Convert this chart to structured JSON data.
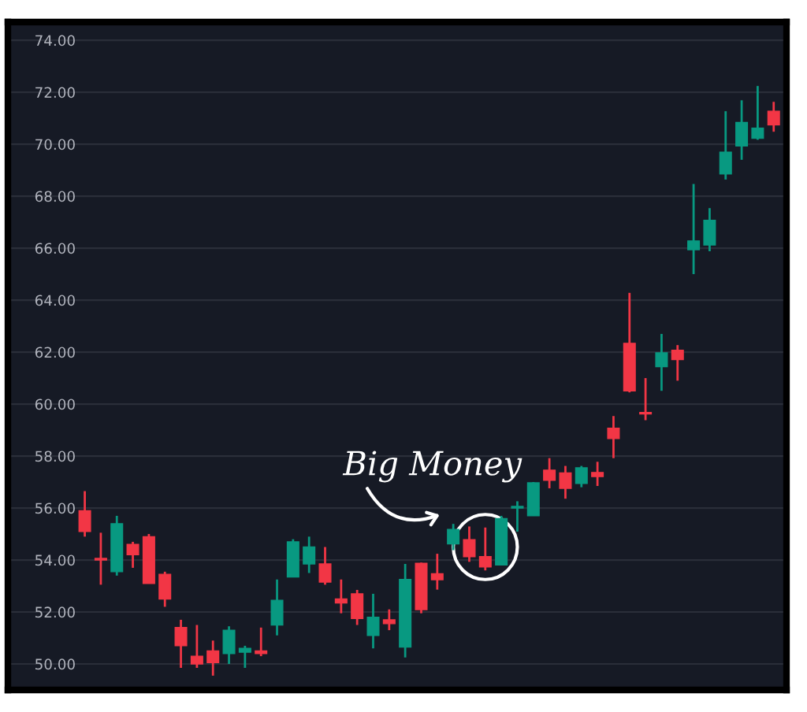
{
  "chart_data": {
    "type": "candlestick",
    "categories": [
      null,
      null,
      null,
      null,
      null,
      null,
      null,
      null,
      null,
      null,
      null,
      null,
      null,
      null,
      null,
      null,
      null,
      null,
      null,
      null,
      null,
      null,
      null,
      null,
      null,
      null,
      null,
      null,
      null,
      null,
      null,
      null,
      null,
      null,
      null,
      null,
      null,
      null,
      null,
      null,
      null,
      null,
      null,
      null
    ],
    "ohlc": [
      [
        55.9,
        56.65,
        54.9,
        55.1
      ],
      [
        54.05,
        55.05,
        53.05,
        54.0
      ],
      [
        53.55,
        55.7,
        53.4,
        55.4
      ],
      [
        54.6,
        54.7,
        53.7,
        54.2
      ],
      [
        54.9,
        55.0,
        53.1,
        53.1
      ],
      [
        53.45,
        53.55,
        52.2,
        52.5
      ],
      [
        51.4,
        51.7,
        49.85,
        50.7
      ],
      [
        50.3,
        51.5,
        49.85,
        50.0
      ],
      [
        50.5,
        50.9,
        49.55,
        50.05
      ],
      [
        50.4,
        51.45,
        50.0,
        51.3
      ],
      [
        50.45,
        50.7,
        49.85,
        50.6
      ],
      [
        50.5,
        51.4,
        50.3,
        50.4
      ],
      [
        51.5,
        53.25,
        51.1,
        52.45
      ],
      [
        53.35,
        54.8,
        53.35,
        54.7
      ],
      [
        53.85,
        54.9,
        53.5,
        54.5
      ],
      [
        53.85,
        54.5,
        53.05,
        53.15
      ],
      [
        52.5,
        53.25,
        51.95,
        52.35
      ],
      [
        52.7,
        52.85,
        51.5,
        51.75
      ],
      [
        51.1,
        52.7,
        50.6,
        51.8
      ],
      [
        51.7,
        52.1,
        51.3,
        51.55
      ],
      [
        50.65,
        53.85,
        50.25,
        53.25
      ],
      [
        53.87,
        53.9,
        51.95,
        52.09
      ],
      [
        53.47,
        54.24,
        52.86,
        53.24
      ],
      [
        54.62,
        55.39,
        54.38,
        55.18
      ],
      [
        54.78,
        55.29,
        53.93,
        54.13
      ],
      [
        54.13,
        55.25,
        53.6,
        53.73
      ],
      [
        53.81,
        55.7,
        53.8,
        55.59
      ],
      [
        56.0,
        56.26,
        55.09,
        56.05
      ],
      [
        55.7,
        57.0,
        55.7,
        56.97
      ],
      [
        57.46,
        57.92,
        56.76,
        57.07
      ],
      [
        57.35,
        57.62,
        56.36,
        56.76
      ],
      [
        56.95,
        57.62,
        56.8,
        57.55
      ],
      [
        57.37,
        57.78,
        56.85,
        57.21
      ],
      [
        59.07,
        59.54,
        57.92,
        58.67
      ],
      [
        62.34,
        64.28,
        60.45,
        60.51
      ],
      [
        59.66,
        61.0,
        59.38,
        59.62
      ],
      [
        61.44,
        62.7,
        60.51,
        61.97
      ],
      [
        62.07,
        62.27,
        60.9,
        61.71
      ],
      [
        65.94,
        68.47,
        65.0,
        66.28
      ],
      [
        66.12,
        67.54,
        65.88,
        67.07
      ],
      [
        68.86,
        71.27,
        68.64,
        69.69
      ],
      [
        69.93,
        71.69,
        69.4,
        70.84
      ],
      [
        70.23,
        72.24,
        70.17,
        70.62
      ],
      [
        71.27,
        71.63,
        70.48,
        70.74
      ]
    ],
    "ylim": [
      49.0,
      74.7
    ],
    "yticks": [
      {
        "value": 50,
        "label": "50.00"
      },
      {
        "value": 52,
        "label": "52.00"
      },
      {
        "value": 54,
        "label": "54.00"
      },
      {
        "value": 56,
        "label": "56.00"
      },
      {
        "value": 58,
        "label": "58.00"
      },
      {
        "value": 60,
        "label": "60.00"
      },
      {
        "value": 62,
        "label": "62.00"
      },
      {
        "value": 64,
        "label": "64.00"
      },
      {
        "value": 66,
        "label": "66.00"
      },
      {
        "value": 68,
        "label": "68.00"
      },
      {
        "value": 70,
        "label": "70.00"
      },
      {
        "value": 72,
        "label": "72.00"
      },
      {
        "value": 74,
        "label": "74.00"
      }
    ],
    "tick_labels": "y",
    "grid": "y",
    "colors": [
      "#f23645",
      "#f23645",
      "#089981",
      "#f23645",
      "#f23645",
      "#f23645",
      "#f23645",
      "#f23645",
      "#f23645",
      "#089981",
      "#089981",
      "#f23645",
      "#089981",
      "#089981",
      "#089981",
      "#f23645",
      "#f23645",
      "#f23645",
      "#089981",
      "#f23645",
      "#089981",
      "#f23645",
      "#f23645",
      "#089981",
      "#f23645",
      "#f23645",
      "#089981",
      "#089981",
      "#089981",
      "#f23645",
      "#f23645",
      "#089981",
      "#f23645",
      "#f23645",
      "#f23645",
      "#f23645",
      "#089981",
      "#f23645",
      "#089981",
      "#089981",
      "#089981",
      "#089981",
      "#089981",
      "#f23645"
    ],
    "annotations": [
      "Big Money"
    ]
  }
}
